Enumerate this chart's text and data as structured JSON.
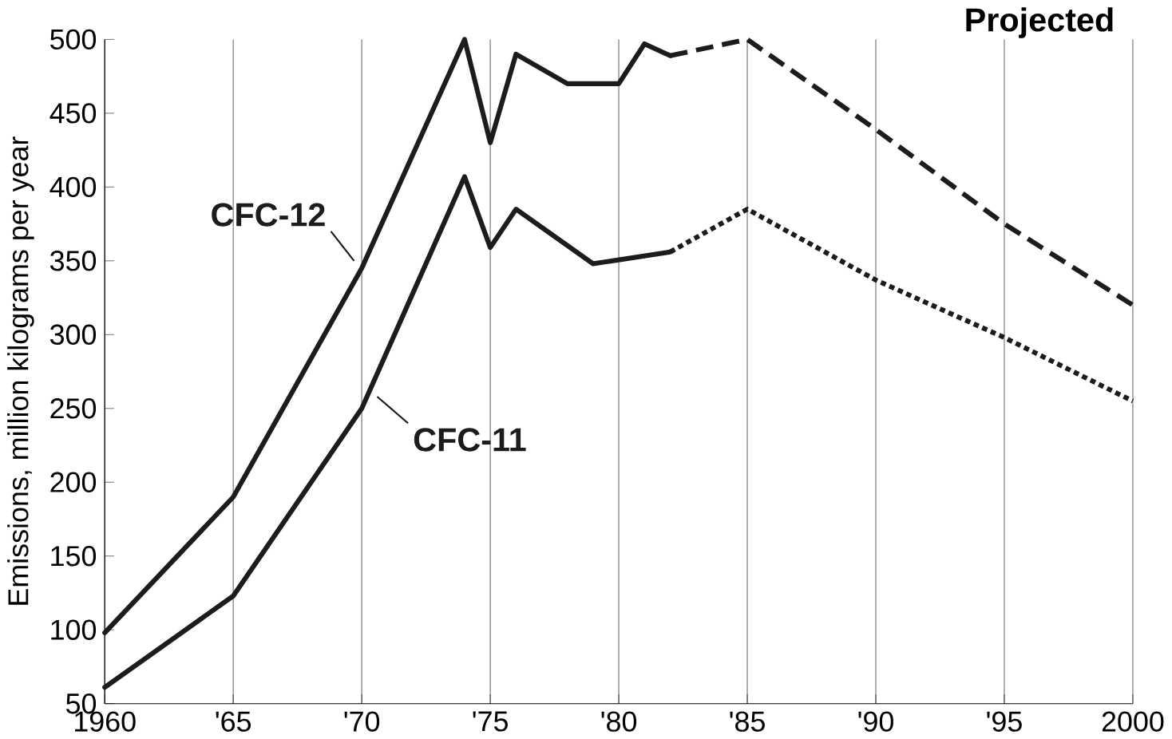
{
  "chart_data": {
    "type": "line",
    "ylabel": "Emissions, million kilograms per year",
    "xlim": [
      1960,
      2000
    ],
    "ylim": [
      50,
      500
    ],
    "xticks": [
      1960,
      {
        "value": 1965,
        "label": "'65"
      },
      {
        "value": 1970,
        "label": "'70"
      },
      {
        "value": 1975,
        "label": "'75"
      },
      {
        "value": 1980,
        "label": "'80"
      },
      {
        "value": 1985,
        "label": "'85"
      },
      {
        "value": 1990,
        "label": "'90"
      },
      {
        "value": 1995,
        "label": "'95"
      },
      2000
    ],
    "yticks": [
      50,
      100,
      150,
      200,
      250,
      300,
      350,
      400,
      450,
      500
    ],
    "grid": "x",
    "series": [
      {
        "name": "CFC-12",
        "color": "#1e1c1a",
        "line_style": "solid",
        "x": [
          1960,
          1965,
          1970,
          1974,
          1975,
          1976,
          1978,
          1980,
          1981,
          1982
        ],
        "values": [
          98,
          190,
          345,
          500,
          430,
          490,
          470,
          470,
          497,
          489
        ]
      },
      {
        "color": "#1e1c1a",
        "line_style": "dashed",
        "x": [
          1982,
          1985,
          1990,
          1995,
          2000
        ],
        "values": [
          489,
          500,
          439,
          375,
          320
        ]
      },
      {
        "name": "CFC-11",
        "color": "#1e1c1a",
        "line_style": "solid",
        "x": [
          1960,
          1965,
          1970,
          1974,
          1975,
          1976,
          1979,
          1982
        ],
        "values": [
          61,
          123,
          250,
          407,
          359,
          385,
          348,
          356
        ]
      },
      {
        "color": "#1e1c1a",
        "line_style": "dotted",
        "x": [
          1982,
          1985,
          1990,
          1995,
          2000
        ],
        "values": [
          356,
          385,
          337,
          298,
          255
        ]
      }
    ],
    "annotations": [
      "Projected"
    ]
  }
}
